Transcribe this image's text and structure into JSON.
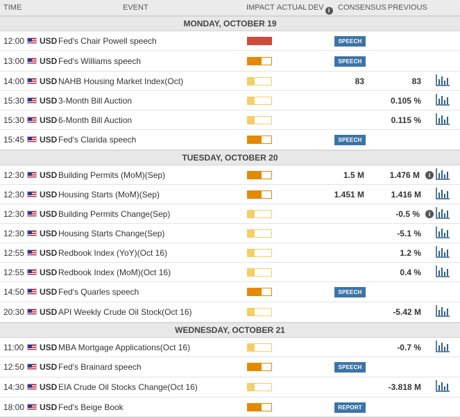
{
  "header": {
    "time": "TIME",
    "event": "EVENT",
    "impact": "IMPACT",
    "actual": "ACTUAL",
    "dev": "DEV",
    "consensus": "CONSENSUS",
    "previous": "PREVIOUS"
  },
  "days": [
    {
      "label": "MONDAY, OCTOBER 19",
      "events": [
        {
          "time": "12:00",
          "currency": "USD",
          "name": "Fed's Chair Powell speech",
          "impact": "high",
          "tag": "SPEECH",
          "consensus": "",
          "previous": "",
          "chart": false
        },
        {
          "time": "13:00",
          "currency": "USD",
          "name": "Fed's Williams speech",
          "impact": "medium",
          "tag": "SPEECH",
          "consensus": "",
          "previous": "",
          "chart": false
        },
        {
          "time": "14:00",
          "currency": "USD",
          "name": "NAHB Housing Market Index(Oct)",
          "impact": "low",
          "tag": "",
          "consensus": "83",
          "previous": "83",
          "chart": true
        },
        {
          "time": "15:30",
          "currency": "USD",
          "name": "3-Month Bill Auction",
          "impact": "low",
          "tag": "",
          "consensus": "",
          "previous": "0.105 %",
          "chart": true
        },
        {
          "time": "15:30",
          "currency": "USD",
          "name": "6-Month Bill Auction",
          "impact": "low",
          "tag": "",
          "consensus": "",
          "previous": "0.115 %",
          "chart": true
        },
        {
          "time": "15:45",
          "currency": "USD",
          "name": "Fed's Clarida speech",
          "impact": "medium",
          "tag": "SPEECH",
          "consensus": "",
          "previous": "",
          "chart": false
        }
      ]
    },
    {
      "label": "TUESDAY, OCTOBER 20",
      "events": [
        {
          "time": "12:30",
          "currency": "USD",
          "name": "Building Permits (MoM)(Sep)",
          "impact": "medium",
          "tag": "",
          "consensus": "1.5 M",
          "previous": "1.476 M",
          "revised": true,
          "chart": true
        },
        {
          "time": "12:30",
          "currency": "USD",
          "name": "Housing Starts (MoM)(Sep)",
          "impact": "medium",
          "tag": "",
          "consensus": "1.451 M",
          "previous": "1.416 M",
          "chart": true
        },
        {
          "time": "12:30",
          "currency": "USD",
          "name": "Building Permits Change(Sep)",
          "impact": "low",
          "tag": "",
          "consensus": "",
          "previous": "-0.5 %",
          "revised": true,
          "chart": true
        },
        {
          "time": "12:30",
          "currency": "USD",
          "name": "Housing Starts Change(Sep)",
          "impact": "low",
          "tag": "",
          "consensus": "",
          "previous": "-5.1 %",
          "chart": true
        },
        {
          "time": "12:55",
          "currency": "USD",
          "name": "Redbook Index (YoY)(Oct 16)",
          "impact": "low",
          "tag": "",
          "consensus": "",
          "previous": "1.2 %",
          "chart": true
        },
        {
          "time": "12:55",
          "currency": "USD",
          "name": "Redbook Index (MoM)(Oct 16)",
          "impact": "low",
          "tag": "",
          "consensus": "",
          "previous": "0.4 %",
          "chart": true
        },
        {
          "time": "14:50",
          "currency": "USD",
          "name": "Fed's Quarles speech",
          "impact": "medium",
          "tag": "SPEECH",
          "consensus": "",
          "previous": "",
          "chart": false
        },
        {
          "time": "20:30",
          "currency": "USD",
          "name": "API Weekly Crude Oil Stock(Oct 16)",
          "impact": "low",
          "tag": "",
          "consensus": "",
          "previous": "-5.42 M",
          "chart": true
        }
      ]
    },
    {
      "label": "WEDNESDAY, OCTOBER 21",
      "events": [
        {
          "time": "11:00",
          "currency": "USD",
          "name": "MBA Mortgage Applications(Oct 16)",
          "impact": "low",
          "tag": "",
          "consensus": "",
          "previous": "-0.7 %",
          "chart": true
        },
        {
          "time": "12:50",
          "currency": "USD",
          "name": "Fed's Brainard speech",
          "impact": "medium",
          "tag": "SPEECH",
          "consensus": "",
          "previous": "",
          "chart": false
        },
        {
          "time": "14:30",
          "currency": "USD",
          "name": "EIA Crude Oil Stocks Change(Oct 16)",
          "impact": "low",
          "tag": "",
          "consensus": "",
          "previous": "-3.818 M",
          "chart": true
        },
        {
          "time": "18:00",
          "currency": "USD",
          "name": "Fed's Beige Book",
          "impact": "medium",
          "tag": "REPORT",
          "consensus": "",
          "previous": "",
          "chart": false
        }
      ]
    }
  ],
  "icons": {
    "flag": "us-flag-icon",
    "chart": "bar-chart-icon",
    "info": "info-icon"
  },
  "colors": {
    "high": "#cf4a3a",
    "medium": "#e48a00",
    "low": "#f3cf66",
    "tag": "#3d74a6"
  }
}
